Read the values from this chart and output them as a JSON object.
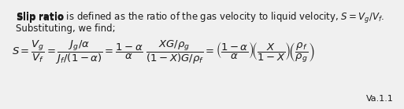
{
  "bg_color": "#f0f0f0",
  "text_color": "#1a1a1a",
  "fontsize_text": 8.5,
  "fontsize_eq": 9.5,
  "fontsize_label": 8,
  "line1_bold": "Slip ratio",
  "line1_rest": " is defined as the ratio of the gas velocity to liquid velocity, $S = V_g/V_f$.",
  "line2": "Substituting, we find;",
  "equation": "$S = \\dfrac{V_g}{V_f} = \\dfrac{J_g/\\alpha}{J_f/(1-\\alpha)} = \\dfrac{1-\\alpha}{\\alpha}\\;\\dfrac{XG/\\rho_g}{(1-X)G/\\rho_f} = \\left(\\dfrac{1-\\alpha}{\\alpha}\\right)\\!\\left(\\dfrac{X}{1-X}\\right)\\!\\left(\\dfrac{\\rho_f}{\\rho_g}\\right)$",
  "eq_label": "Va.1.1"
}
